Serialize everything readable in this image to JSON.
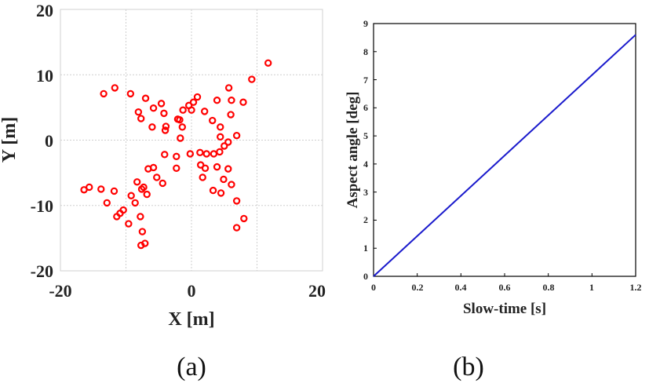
{
  "chart_data": [
    {
      "type": "scatter",
      "xlabel": "X [m]",
      "ylabel": "Y [m]",
      "xlim": [
        -20,
        20
      ],
      "ylim": [
        -20,
        20
      ],
      "xticks": [
        "-20",
        "0",
        "20"
      ],
      "yticks": [
        "20",
        "10",
        "0",
        "-10",
        "-20"
      ],
      "grid": true,
      "marker": "open-circle",
      "marker_color": "#ff0000",
      "points": [
        [
          11.7,
          11.8
        ],
        [
          9.2,
          9.3
        ],
        [
          5.7,
          8.0
        ],
        [
          7.9,
          5.8
        ],
        [
          6.1,
          6.1
        ],
        [
          3.9,
          6.1
        ],
        [
          -13.4,
          7.1
        ],
        [
          -11.7,
          8.0
        ],
        [
          -9.3,
          7.1
        ],
        [
          -7.0,
          6.4
        ],
        [
          -4.6,
          5.6
        ],
        [
          -5.8,
          4.9
        ],
        [
          -8.1,
          4.3
        ],
        [
          -7.7,
          3.3
        ],
        [
          -4.2,
          4.1
        ],
        [
          -6.0,
          2.0
        ],
        [
          -4.0,
          1.5
        ],
        [
          -3.9,
          2.1
        ],
        [
          -2.1,
          3.2
        ],
        [
          -1.3,
          4.6
        ],
        [
          -0.4,
          5.3
        ],
        [
          0.3,
          5.8
        ],
        [
          0.9,
          6.6
        ],
        [
          0.0,
          4.6
        ],
        [
          -1.4,
          2.0
        ],
        [
          -1.8,
          3.1
        ],
        [
          -1.7,
          0.3
        ],
        [
          2.0,
          4.4
        ],
        [
          3.2,
          3.0
        ],
        [
          6.0,
          3.9
        ],
        [
          4.4,
          2.0
        ],
        [
          4.4,
          0.5
        ],
        [
          6.9,
          0.7
        ],
        [
          5.6,
          -0.3
        ],
        [
          5.0,
          -0.9
        ],
        [
          4.3,
          -1.8
        ],
        [
          3.4,
          -2.1
        ],
        [
          2.3,
          -2.1
        ],
        [
          1.3,
          -1.9
        ],
        [
          -0.2,
          -2.1
        ],
        [
          -2.3,
          -2.5
        ],
        [
          -4.1,
          -2.2
        ],
        [
          -5.8,
          -4.2
        ],
        [
          -6.6,
          -4.4
        ],
        [
          -2.3,
          -4.3
        ],
        [
          1.4,
          -3.8
        ],
        [
          2.1,
          -4.3
        ],
        [
          3.9,
          -4.1
        ],
        [
          5.6,
          -4.4
        ],
        [
          -5.3,
          -5.7
        ],
        [
          -4.4,
          -6.6
        ],
        [
          1.7,
          -5.7
        ],
        [
          4.9,
          -6.0
        ],
        [
          6.1,
          -6.8
        ],
        [
          -8.3,
          -6.4
        ],
        [
          -6.8,
          -8.3
        ],
        [
          -7.3,
          -7.2
        ],
        [
          -7.6,
          -7.5
        ],
        [
          -11.8,
          -7.8
        ],
        [
          -13.8,
          -7.5
        ],
        [
          -15.6,
          -7.2
        ],
        [
          -16.4,
          -7.6
        ],
        [
          3.3,
          -7.7
        ],
        [
          4.5,
          -8.1
        ],
        [
          6.9,
          -9.3
        ],
        [
          -9.2,
          -8.5
        ],
        [
          -8.6,
          -9.6
        ],
        [
          -12.9,
          -9.6
        ],
        [
          -10.4,
          -10.7
        ],
        [
          -10.9,
          -11.2
        ],
        [
          -11.4,
          -11.7
        ],
        [
          -7.8,
          -11.7
        ],
        [
          -9.6,
          -12.8
        ],
        [
          8.0,
          -12.0
        ],
        [
          6.9,
          -13.4
        ],
        [
          -7.5,
          -14.0
        ],
        [
          -7.1,
          -15.8
        ],
        [
          -7.7,
          -16.1
        ]
      ]
    },
    {
      "type": "line",
      "xlabel": "Slow-time [s]",
      "ylabel": "Aspect angle [deg]",
      "xlim": [
        0,
        1.2
      ],
      "ylim": [
        0,
        9
      ],
      "xticks": [
        "0",
        "0.2",
        "0.4",
        "0.6",
        "0.8",
        "1",
        "1.2"
      ],
      "yticks": [
        "0",
        "1",
        "2",
        "3",
        "4",
        "5",
        "6",
        "7",
        "8",
        "9"
      ],
      "grid": false,
      "line_color": "#1a1acc",
      "x": [
        0,
        1.2
      ],
      "y": [
        0,
        8.6
      ]
    }
  ],
  "captions": [
    "(a)",
    "(b)"
  ]
}
